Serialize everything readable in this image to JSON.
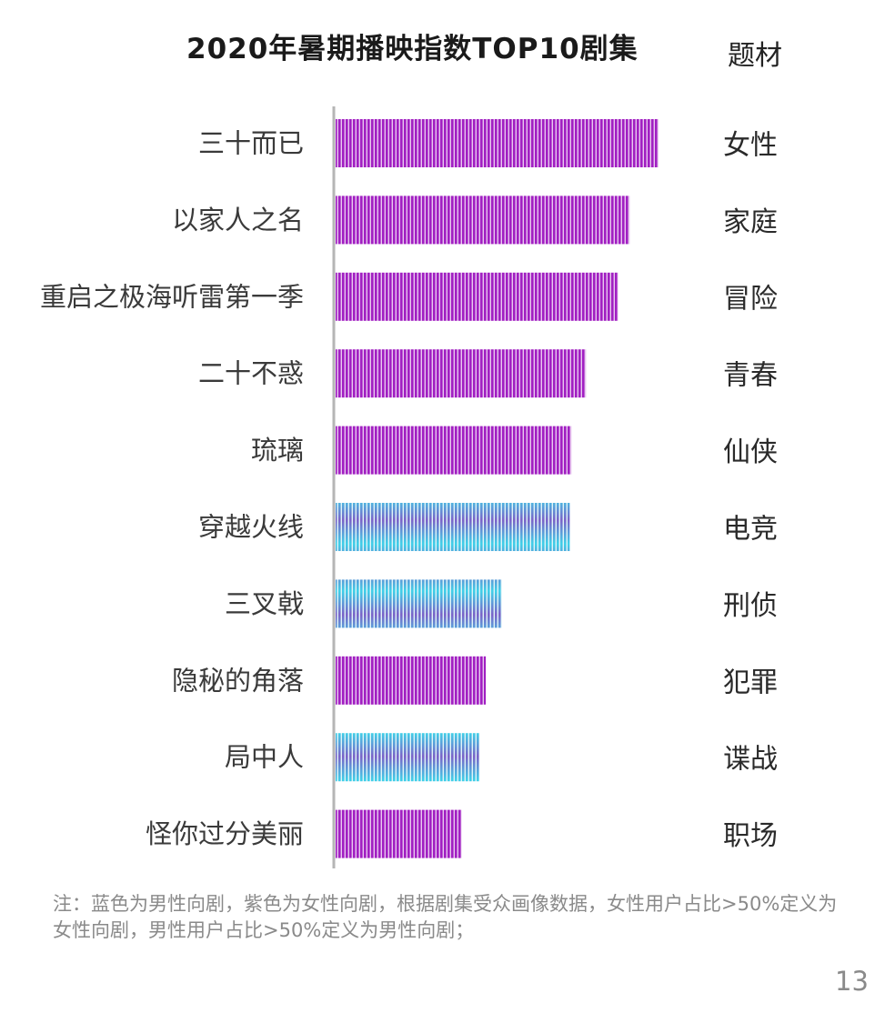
{
  "chart_data": {
    "type": "bar",
    "orientation": "horizontal",
    "title": "2020年暑期播映指数TOP10剧集",
    "column_header": "题材",
    "categories": [
      "三十而已",
      "以家人之名",
      "重启之极海听雷第一季",
      "二十不惑",
      "琉璃",
      "穿越火线",
      "三叉戟",
      "隐秘的角落",
      "局中人",
      "怪你过分美丽"
    ],
    "genres": [
      "女性",
      "家庭",
      "冒险",
      "青春",
      "仙侠",
      "电竞",
      "刑侦",
      "犯罪",
      "谍战",
      "职场"
    ],
    "audience": [
      "female",
      "female",
      "female",
      "female",
      "female",
      "male",
      "male",
      "female",
      "male",
      "female"
    ],
    "values": [
      100,
      91,
      87.5,
      77.5,
      73,
      72.5,
      51.5,
      46.5,
      44.5,
      39
    ],
    "value_axis_labels": "none",
    "legend": "none",
    "grid": false,
    "colors": {
      "female": "#a020c0",
      "male": "#5a8fd6"
    }
  },
  "note": "注：蓝色为男性向剧，紫色为女性向剧，根据剧集受众画像数据，女性用户占比>50%定义为女性向剧，男性用户占比>50%定义为男性向剧；",
  "page_number": "13"
}
